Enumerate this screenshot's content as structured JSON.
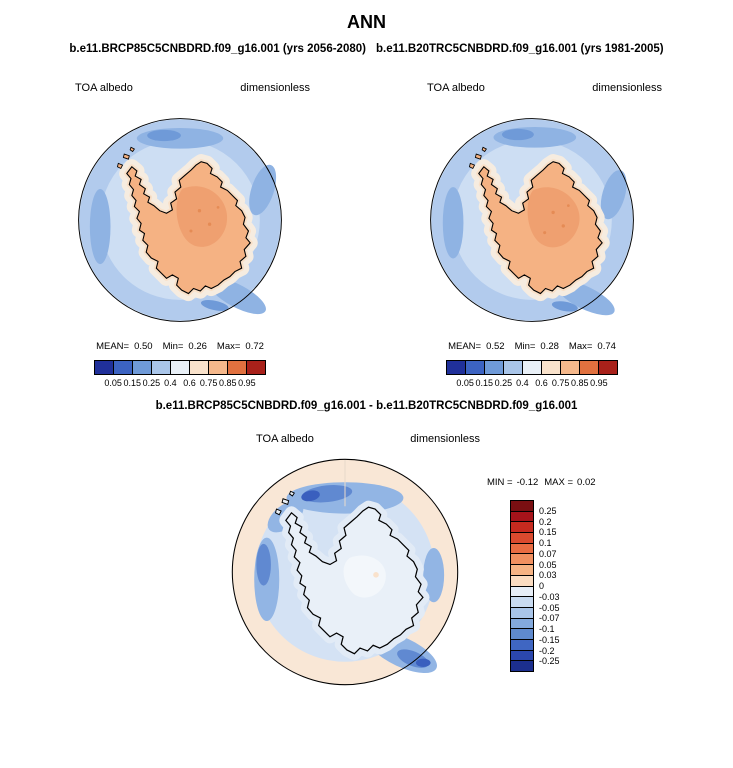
{
  "title": "ANN",
  "header": {
    "case_left": "b.e11.BRCP85C5CNBDRD.f09_g16.001 (yrs 2056-2080)",
    "case_right": "b.e11.B20TRC5CNBDRD.f09_g16.001 (yrs 1981-2005)"
  },
  "panels": [
    {
      "field_label": "TOA albedo",
      "units_label": "dimensionless",
      "stats": {
        "mean_label": "MEAN=",
        "mean_value": "0.50",
        "min_label": "Min=",
        "min_value": "0.26",
        "max_label": "Max=",
        "max_value": "0.72"
      }
    },
    {
      "field_label": "TOA albedo",
      "units_label": "dimensionless",
      "stats": {
        "mean_label": "MEAN=",
        "mean_value": "0.52",
        "min_label": "Min=",
        "min_value": "0.28",
        "max_label": "Max=",
        "max_value": "0.74"
      }
    }
  ],
  "albedo_colorbar": {
    "tick_labels": [
      "0.05",
      "0.15",
      "0.25",
      "0.4",
      "0.6",
      "0.75",
      "0.85",
      "0.95"
    ],
    "colors": [
      "#20309a",
      "#3c63c2",
      "#6f9ad8",
      "#a9c5e9",
      "#e9f0f7",
      "#f9e2cb",
      "#f5b88b",
      "#e1713f",
      "#a8211a"
    ]
  },
  "diff": {
    "title": "b.e11.BRCP85C5CNBDRD.f09_g16.001 - b.e11.B20TRC5CNBDRD.f09_g16.001",
    "field_label": "TOA albedo",
    "units_label": "dimensionless",
    "min_label": "MIN =",
    "min_value": "-0.12",
    "max_label": "MAX =",
    "max_value": "0.02",
    "colorbar": {
      "tick_labels": [
        "0.25",
        "0.2",
        "0.15",
        "0.1",
        "0.07",
        "0.05",
        "0.03",
        "0",
        "-0.03",
        "-0.05",
        "-0.07",
        "-0.1",
        "-0.15",
        "-0.2",
        "-0.25"
      ],
      "colors": [
        "#7a0f12",
        "#a6131a",
        "#c62a1f",
        "#da4a2e",
        "#e96c42",
        "#f19060",
        "#f6b384",
        "#fbdcc1",
        "#e7eef7",
        "#c9dbf1",
        "#a9c5e9",
        "#83a9dd",
        "#5f8ace",
        "#3f66c2",
        "#2b47ad",
        "#1c2f8e"
      ]
    }
  },
  "chart_data": [
    {
      "type": "heatmap",
      "title": "b.e11.BRCP85C5CNBDRD.f09_g16.001 (yrs 2056-2080)",
      "season": "ANN",
      "variable": "TOA albedo",
      "units": "dimensionless",
      "projection": "south polar stereographic (Antarctica)",
      "stats": {
        "mean": 0.5,
        "min": 0.26,
        "max": 0.72
      },
      "colorbar_levels": [
        0.05,
        0.15,
        0.25,
        0.4,
        0.6,
        0.75,
        0.85,
        0.95
      ],
      "legend_position": "bottom"
    },
    {
      "type": "heatmap",
      "title": "b.e11.B20TRC5CNBDRD.f09_g16.001 (yrs 1981-2005)",
      "season": "ANN",
      "variable": "TOA albedo",
      "units": "dimensionless",
      "projection": "south polar stereographic (Antarctica)",
      "stats": {
        "mean": 0.52,
        "min": 0.28,
        "max": 0.74
      },
      "colorbar_levels": [
        0.05,
        0.15,
        0.25,
        0.4,
        0.6,
        0.75,
        0.85,
        0.95
      ],
      "legend_position": "bottom"
    },
    {
      "type": "heatmap",
      "title": "b.e11.BRCP85C5CNBDRD.f09_g16.001 - b.e11.B20TRC5CNBDRD.f09_g16.001",
      "season": "ANN",
      "variable": "TOA albedo difference",
      "units": "dimensionless",
      "projection": "south polar stereographic (Antarctica)",
      "stats": {
        "min": -0.12,
        "max": 0.02
      },
      "colorbar_levels": [
        0.25,
        0.2,
        0.15,
        0.1,
        0.07,
        0.05,
        0.03,
        0,
        -0.03,
        -0.05,
        -0.07,
        -0.1,
        -0.15,
        -0.2,
        -0.25
      ],
      "legend_position": "right"
    }
  ]
}
